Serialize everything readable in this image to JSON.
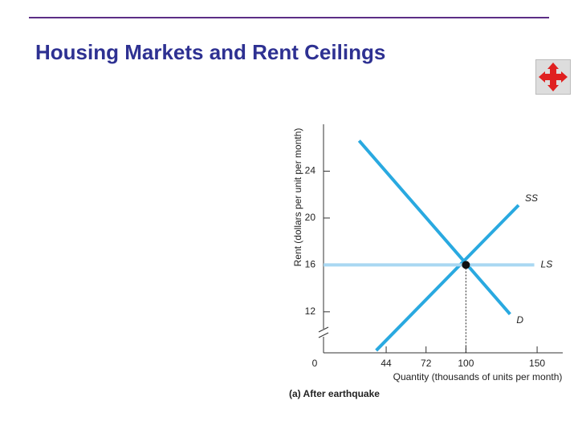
{
  "slide_title": "Housing Markets and Rent Ceilings",
  "chart_data": {
    "type": "line",
    "y_label": "Rent (dollars per unit per month)",
    "x_label": "Quantity (thousands of units per month)",
    "caption": "(a) After earthquake",
    "xlim": [
      0,
      168
    ],
    "ylim": [
      8.5,
      28
    ],
    "xticks": [
      0,
      44,
      72,
      100,
      150
    ],
    "yticks": [
      12,
      16,
      20,
      24
    ],
    "series": [
      {
        "name": "D",
        "color": "#29a9e0",
        "x": [
          25,
          131
        ],
        "values": [
          26.6,
          11.8
        ]
      },
      {
        "name": "SS",
        "color": "#29a9e0",
        "x": [
          37,
          137
        ],
        "values": [
          8.7,
          21.1
        ]
      },
      {
        "name": "LS",
        "color": "#a9d8f2",
        "x": [
          0,
          148
        ],
        "values": [
          16,
          16
        ]
      }
    ],
    "equilibrium": {
      "x": 100,
      "y": 16
    }
  }
}
